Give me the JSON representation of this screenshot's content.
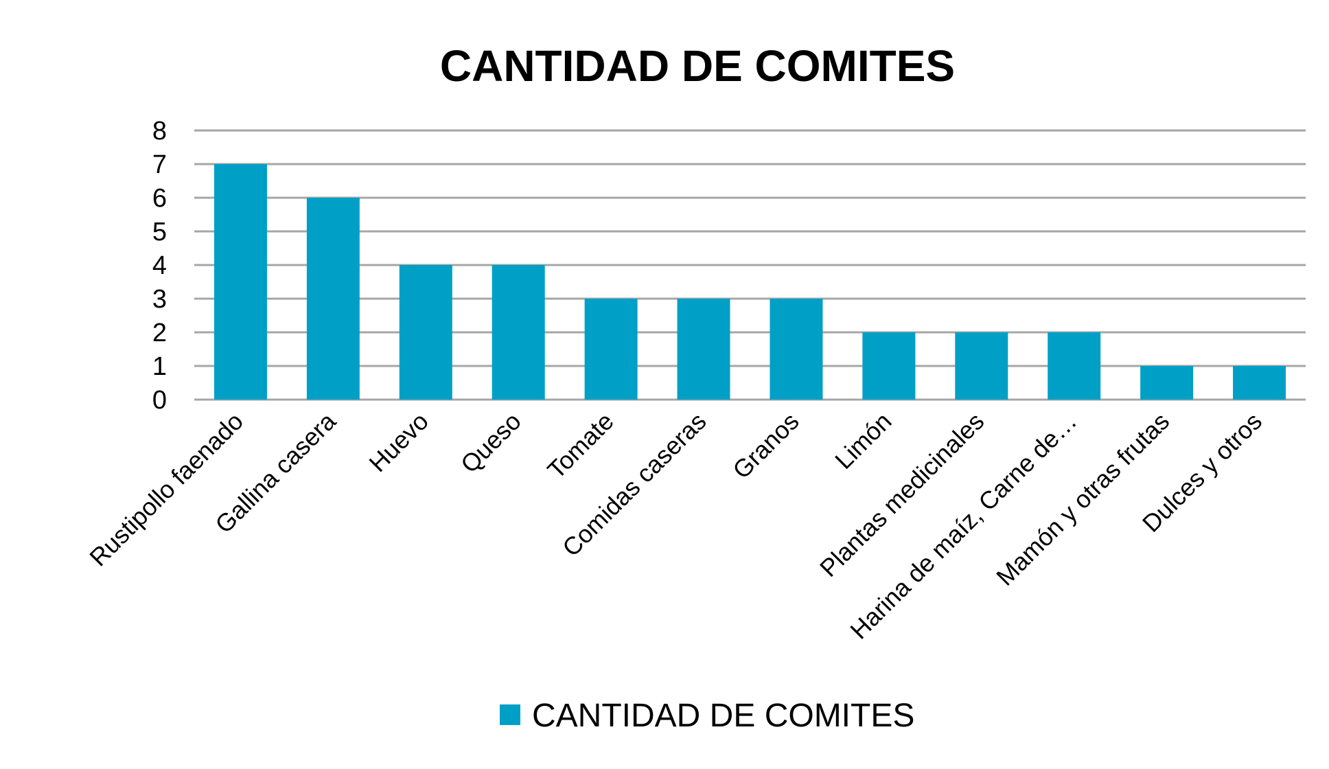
{
  "chart_data": {
    "type": "bar",
    "title": "CANTIDAD DE COMITES",
    "xlabel": "",
    "ylabel": "",
    "categories": [
      "Rustipollo faenado",
      "Gallina casera",
      "Huevo",
      "Queso",
      "Tomate",
      "Comidas caseras",
      "Granos",
      "Limón",
      "Plantas medicinales",
      "Harina de maíz, Carne de…",
      "Mamón y otras frutas",
      "Dulces y otros"
    ],
    "series": [
      {
        "name": "CANTIDAD DE COMITES",
        "values": [
          7,
          6,
          4,
          4,
          3,
          3,
          3,
          2,
          2,
          2,
          1,
          1
        ],
        "color": "#00a0c6"
      }
    ],
    "ylim": [
      0,
      8
    ],
    "yticks": [
      0,
      1,
      2,
      3,
      4,
      5,
      6,
      7,
      8
    ],
    "grid": true,
    "legend_position": "bottom"
  }
}
